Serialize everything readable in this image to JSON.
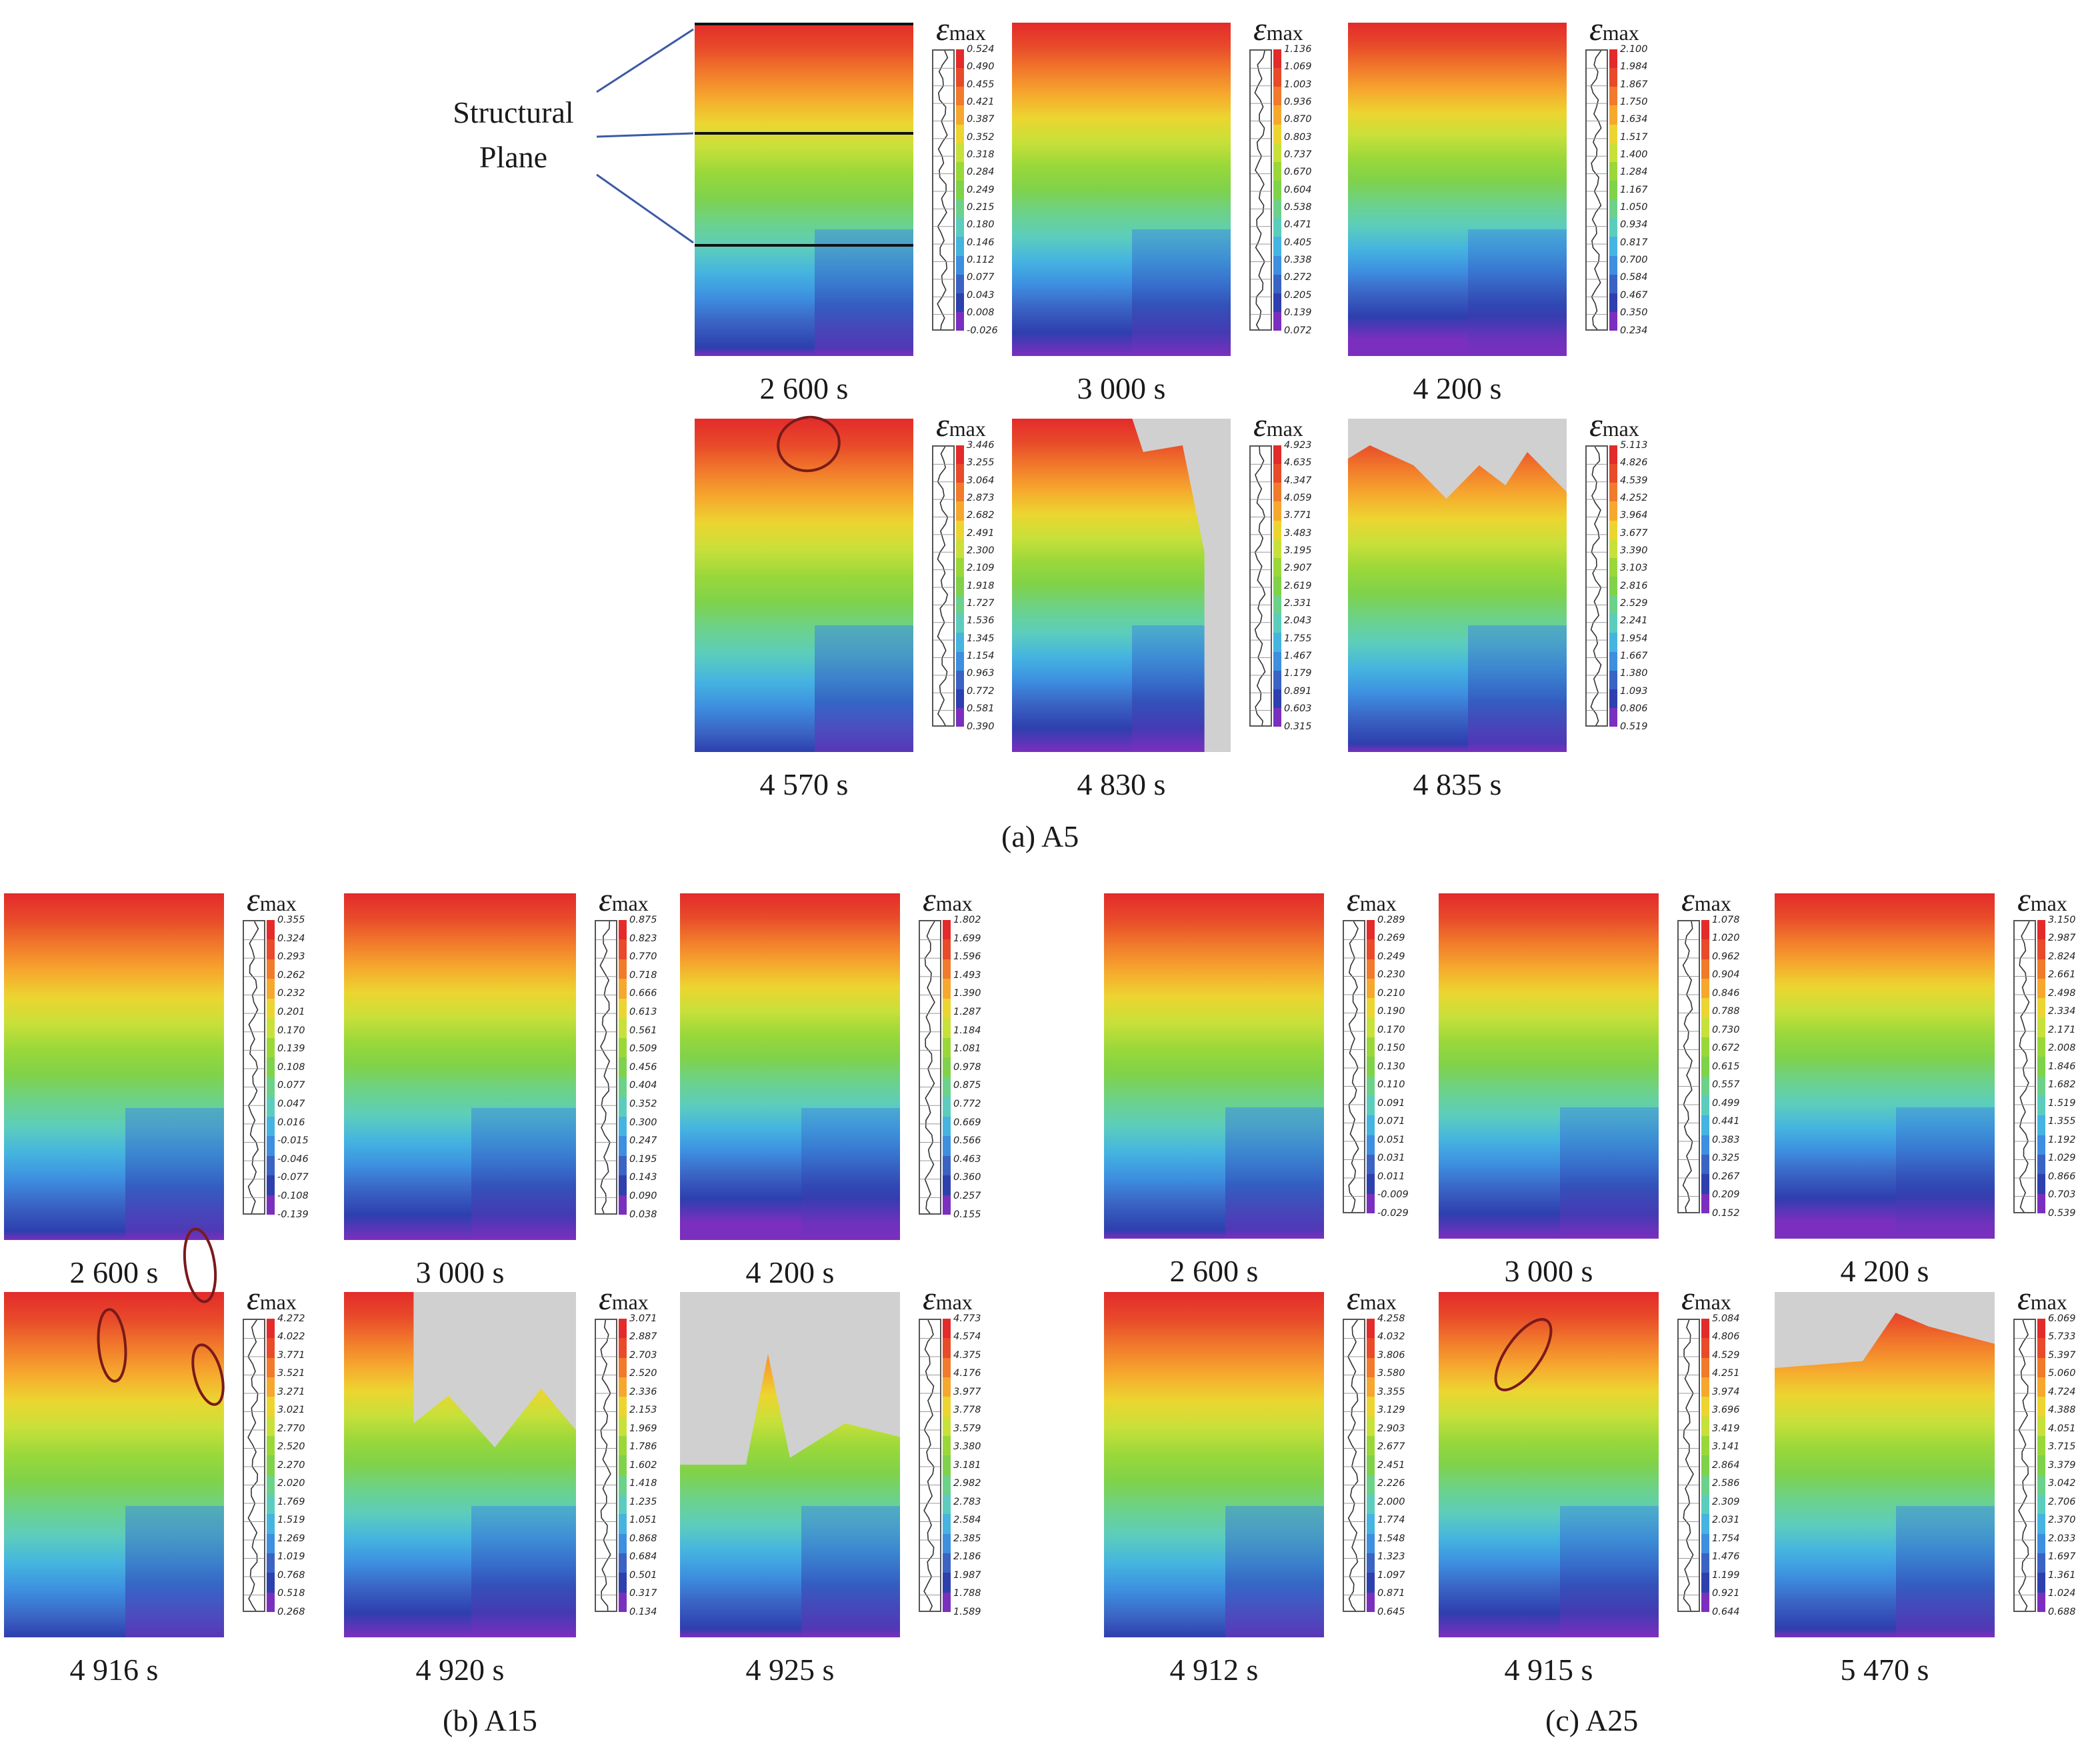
{
  "structural_plane_label": [
    "Structural",
    "Plane"
  ],
  "legend_symbol": "ε",
  "legend_subscript": "max",
  "panel_group_labels": {
    "a": "(a) A5",
    "b": "(b) A15",
    "c": "(c) A25"
  },
  "colors": [
    "#7b2fbe",
    "#2e3fae",
    "#3a63c4",
    "#3d8fe0",
    "#45b4e0",
    "#5ccdbd",
    "#6cd28a",
    "#7fd24a",
    "#9ad83a",
    "#c8e03a",
    "#ecd530",
    "#f6a82e",
    "#f17a2b",
    "#e84a2a",
    "#e32b2b"
  ],
  "panels": [
    {
      "id": "a1",
      "group": "a",
      "time": "2 600  s",
      "ticks": [
        "0.524",
        "0.490",
        "0.455",
        "0.421",
        "0.387",
        "0.352",
        "0.318",
        "0.284",
        "0.249",
        "0.215",
        "0.180",
        "0.146",
        "0.112",
        "0.077",
        "0.043",
        "0.008",
        "-0.026"
      ]
    },
    {
      "id": "a2",
      "group": "a",
      "time": "3 000  s",
      "ticks": [
        "1.136",
        "1.069",
        "1.003",
        "0.936",
        "0.870",
        "0.803",
        "0.737",
        "0.670",
        "0.604",
        "0.538",
        "0.471",
        "0.405",
        "0.338",
        "0.272",
        "0.205",
        "0.139",
        "0.072"
      ]
    },
    {
      "id": "a3",
      "group": "a",
      "time": "4 200  s",
      "ticks": [
        "2.100",
        "1.984",
        "1.867",
        "1.750",
        "1.634",
        "1.517",
        "1.400",
        "1.284",
        "1.167",
        "1.050",
        "0.934",
        "0.817",
        "0.700",
        "0.584",
        "0.467",
        "0.350",
        "0.234"
      ]
    },
    {
      "id": "a4",
      "group": "a",
      "time": "4 570  s",
      "ticks": [
        "3.446",
        "3.255",
        "3.064",
        "2.873",
        "2.682",
        "2.491",
        "2.300",
        "2.109",
        "1.918",
        "1.727",
        "1.536",
        "1.345",
        "1.154",
        "0.963",
        "0.772",
        "0.581",
        "0.390"
      ]
    },
    {
      "id": "a5",
      "group": "a",
      "time": "4 830  s",
      "ticks": [
        "4.923",
        "4.635",
        "4.347",
        "4.059",
        "3.771",
        "3.483",
        "3.195",
        "2.907",
        "2.619",
        "2.331",
        "2.043",
        "1.755",
        "1.467",
        "1.179",
        "0.891",
        "0.603",
        "0.315"
      ]
    },
    {
      "id": "a6",
      "group": "a",
      "time": "4 835  s",
      "ticks": [
        "5.113",
        "4.826",
        "4.539",
        "4.252",
        "3.964",
        "3.677",
        "3.390",
        "3.103",
        "2.816",
        "2.529",
        "2.241",
        "1.954",
        "1.667",
        "1.380",
        "1.093",
        "0.806",
        "0.519"
      ]
    },
    {
      "id": "b1",
      "group": "b",
      "time": "2 600  s",
      "ticks": [
        "0.355",
        "0.324",
        "0.293",
        "0.262",
        "0.232",
        "0.201",
        "0.170",
        "0.139",
        "0.108",
        "0.077",
        "0.047",
        "0.016",
        "-0.015",
        "-0.046",
        "-0.077",
        "-0.108",
        "-0.139"
      ]
    },
    {
      "id": "b2",
      "group": "b",
      "time": "3 000  s",
      "ticks": [
        "0.875",
        "0.823",
        "0.770",
        "0.718",
        "0.666",
        "0.613",
        "0.561",
        "0.509",
        "0.456",
        "0.404",
        "0.352",
        "0.300",
        "0.247",
        "0.195",
        "0.143",
        "0.090",
        "0.038"
      ]
    },
    {
      "id": "b3",
      "group": "b",
      "time": "4 200  s",
      "ticks": [
        "1.802",
        "1.699",
        "1.596",
        "1.493",
        "1.390",
        "1.287",
        "1.184",
        "1.081",
        "0.978",
        "0.875",
        "0.772",
        "0.669",
        "0.566",
        "0.463",
        "0.360",
        "0.257",
        "0.155"
      ]
    },
    {
      "id": "b4",
      "group": "b",
      "time": "4 916  s",
      "ticks": [
        "4.272",
        "4.022",
        "3.771",
        "3.521",
        "3.271",
        "3.021",
        "2.770",
        "2.520",
        "2.270",
        "2.020",
        "1.769",
        "1.519",
        "1.269",
        "1.019",
        "0.768",
        "0.518",
        "0.268"
      ]
    },
    {
      "id": "b5",
      "group": "b",
      "time": "4 920  s",
      "ticks": [
        "3.071",
        "2.887",
        "2.703",
        "2.520",
        "2.336",
        "2.153",
        "1.969",
        "1.786",
        "1.602",
        "1.418",
        "1.235",
        "1.051",
        "0.868",
        "0.684",
        "0.501",
        "0.317",
        "0.134"
      ]
    },
    {
      "id": "b6",
      "group": "b",
      "time": "4 925  s",
      "ticks": [
        "4.773",
        "4.574",
        "4.375",
        "4.176",
        "3.977",
        "3.778",
        "3.579",
        "3.380",
        "3.181",
        "2.982",
        "2.783",
        "2.584",
        "2.385",
        "2.186",
        "1.987",
        "1.788",
        "1.589"
      ]
    },
    {
      "id": "c1",
      "group": "c",
      "time": "2 600  s",
      "ticks": [
        "0.289",
        "0.269",
        "0.249",
        "0.230",
        "0.210",
        "0.190",
        "0.170",
        "0.150",
        "0.130",
        "0.110",
        "0.091",
        "0.071",
        "0.051",
        "0.031",
        "0.011",
        "-0.009",
        "-0.029"
      ]
    },
    {
      "id": "c2",
      "group": "c",
      "time": "3 000  s",
      "ticks": [
        "1.078",
        "1.020",
        "0.962",
        "0.904",
        "0.846",
        "0.788",
        "0.730",
        "0.672",
        "0.615",
        "0.557",
        "0.499",
        "0.441",
        "0.383",
        "0.325",
        "0.267",
        "0.209",
        "0.152"
      ]
    },
    {
      "id": "c3",
      "group": "c",
      "time": "4 200  s",
      "ticks": [
        "3.150",
        "2.987",
        "2.824",
        "2.661",
        "2.498",
        "2.334",
        "2.171",
        "2.008",
        "1.846",
        "1.682",
        "1.519",
        "1.355",
        "1.192",
        "1.029",
        "0.866",
        "0.703",
        "0.539"
      ]
    },
    {
      "id": "c4",
      "group": "c",
      "time": "4 912  s",
      "ticks": [
        "4.258",
        "4.032",
        "3.806",
        "3.580",
        "3.355",
        "3.129",
        "2.903",
        "2.677",
        "2.451",
        "2.226",
        "2.000",
        "1.774",
        "1.548",
        "1.323",
        "1.097",
        "0.871",
        "0.645"
      ]
    },
    {
      "id": "c5",
      "group": "c",
      "time": "4 915  s",
      "ticks": [
        "5.084",
        "4.806",
        "4.529",
        "4.251",
        "3.974",
        "3.696",
        "3.419",
        "3.141",
        "2.864",
        "2.586",
        "2.309",
        "2.031",
        "1.754",
        "1.476",
        "1.199",
        "0.921",
        "0.644"
      ]
    },
    {
      "id": "c6",
      "group": "c",
      "time": "5 470  s",
      "ticks": [
        "6.069",
        "5.733",
        "5.397",
        "5.060",
        "4.724",
        "4.388",
        "4.051",
        "3.715",
        "3.379",
        "3.042",
        "2.706",
        "2.370",
        "2.033",
        "1.697",
        "1.361",
        "1.024",
        "0.688"
      ]
    }
  ]
}
